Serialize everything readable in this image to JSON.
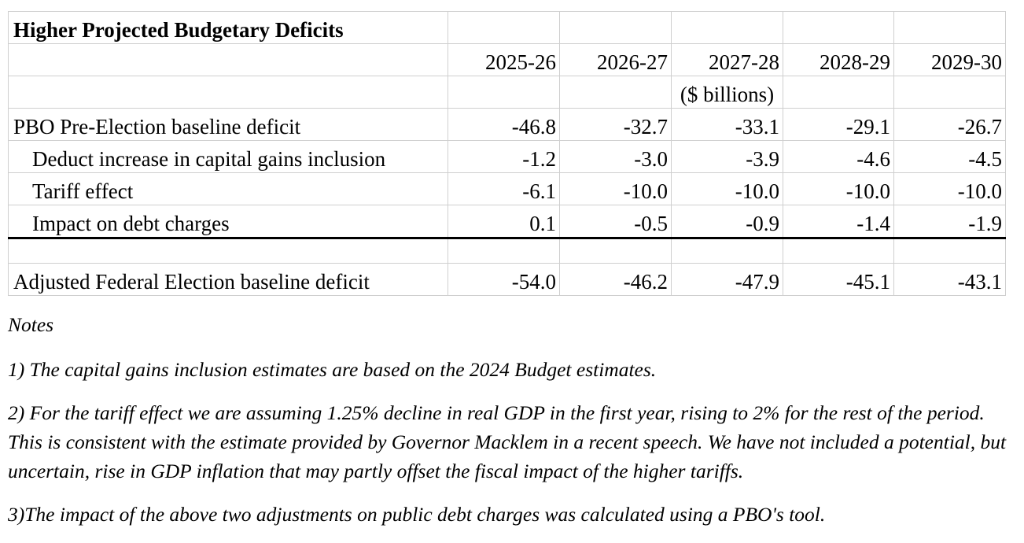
{
  "table": {
    "title": "Higher Projected Budgetary Deficits",
    "years": [
      "2025-26",
      "2026-27",
      "2027-28",
      "2028-29",
      "2029-30"
    ],
    "unit": "($ billions)",
    "rows": [
      {
        "label": "PBO Pre-Election baseline deficit",
        "values": [
          "-46.8",
          "-32.7",
          "-33.1",
          "-29.1",
          "-26.7"
        ]
      },
      {
        "label": "Deduct increase in capital gains inclusion",
        "values": [
          "-1.2",
          "-3.0",
          "-3.9",
          "-4.6",
          "-4.5"
        ]
      },
      {
        "label": "Tariff effect",
        "values": [
          "-6.1",
          "-10.0",
          "-10.0",
          "-10.0",
          "-10.0"
        ]
      },
      {
        "label": "Impact on debt charges",
        "values": [
          "0.1",
          "-0.5",
          "-0.9",
          "-1.4",
          "-1.9"
        ]
      }
    ],
    "total": {
      "label": "Adjusted Federal Election baseline deficit",
      "values": [
        "-54.0",
        "-46.2",
        "-47.9",
        "-45.1",
        "-43.1"
      ]
    }
  },
  "notes": {
    "heading": "Notes",
    "items": [
      "1) The capital gains inclusion estimates are based on the 2024 Budget estimates.",
      "2) For the tariff effect we are assuming 1.25% decline in real GDP in the first year, rising to 2% for the rest of the period. This is consistent with the estimate provided by Governor Macklem in a recent speech. We have not included a potential, but uncertain, rise in GDP inflation that may partly offset the fiscal impact of the higher tariffs.",
      "3)The impact of the above two adjustments on public debt charges was calculated using a PBO's tool."
    ]
  }
}
